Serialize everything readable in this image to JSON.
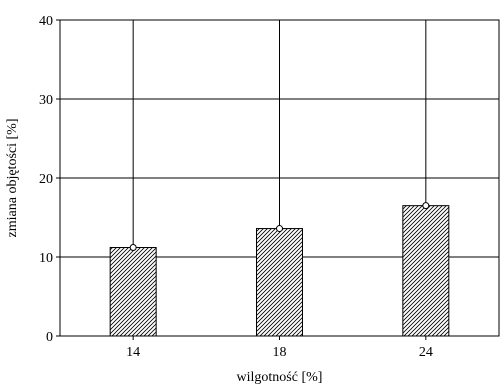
{
  "chart_data": {
    "type": "bar",
    "categories": [
      "14",
      "18",
      "24"
    ],
    "series": [
      {
        "values": [
          11.2,
          13.6,
          16.5
        ],
        "error_upper": [
          40,
          40,
          40
        ]
      }
    ],
    "xlabel": "wilgotność [%]",
    "ylabel": "zmiana objętości [%]",
    "ylim": [
      0,
      40
    ],
    "yticks": [
      0,
      10,
      20,
      30,
      40
    ],
    "grid": true,
    "bar_pattern": "diagonal-hatch",
    "colors": {
      "axis": "#000000",
      "grid": "#000000",
      "bar_fill": "#ffffff",
      "bar_hatch": "#000000"
    }
  }
}
